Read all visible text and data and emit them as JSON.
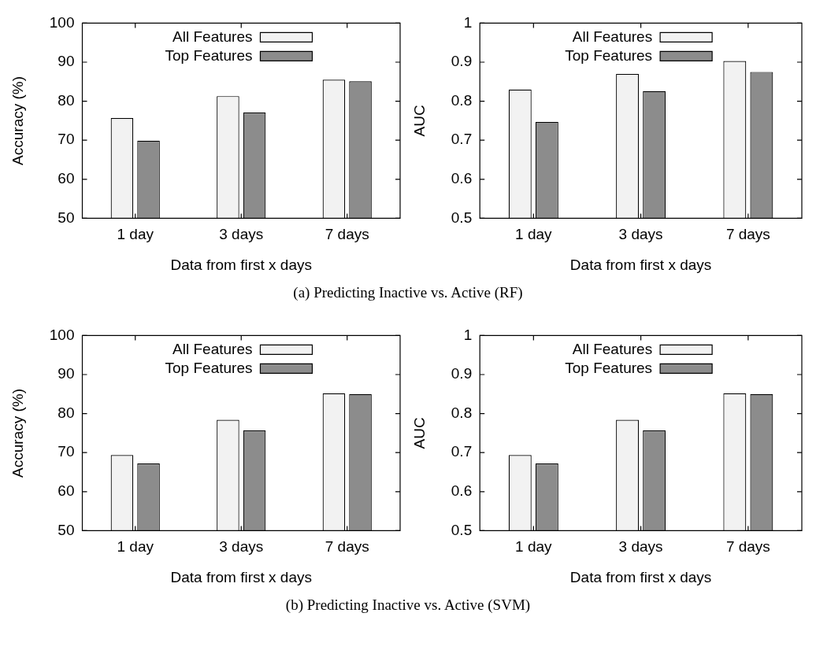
{
  "chart_data": [
    {
      "type": "bar",
      "ylabel": "Accuracy (%)",
      "xlabel": "Data from first x days",
      "categories": [
        "1 day",
        "3 days",
        "7 days"
      ],
      "series": [
        {
          "name": "All Features",
          "color": "#f2f2f2",
          "values": [
            75.7,
            81.3,
            85.5
          ]
        },
        {
          "name": "Top Features",
          "color": "#8c8c8c",
          "values": [
            69.9,
            77.1,
            85.1
          ]
        }
      ],
      "ylim": [
        50,
        100
      ],
      "yticks": [
        50,
        60,
        70,
        80,
        90,
        100
      ],
      "legend": "top",
      "grid": false
    },
    {
      "type": "bar",
      "ylabel": "AUC",
      "xlabel": "Data from first x days",
      "categories": [
        "1 day",
        "3 days",
        "7 days"
      ],
      "series": [
        {
          "name": "All Features",
          "color": "#f2f2f2",
          "values": [
            0.83,
            0.87,
            0.903
          ]
        },
        {
          "name": "Top Features",
          "color": "#8c8c8c",
          "values": [
            0.747,
            0.826,
            0.875
          ]
        }
      ],
      "ylim": [
        0.5,
        1
      ],
      "yticks": [
        0.5,
        0.6,
        0.7,
        0.8,
        0.9,
        1
      ],
      "legend": "top",
      "grid": false,
      "annotations": [
        "(a) Predicting Inactive vs. Active (RF)"
      ]
    },
    {
      "type": "bar",
      "ylabel": "Accuracy (%)",
      "xlabel": "Data from first x days",
      "categories": [
        "1 day",
        "3 days",
        "7 days"
      ],
      "series": [
        {
          "name": "All Features",
          "color": "#f2f2f2",
          "values": [
            69.4,
            78.4,
            85.2
          ]
        },
        {
          "name": "Top Features",
          "color": "#8c8c8c",
          "values": [
            67.2,
            75.7,
            85.0
          ]
        }
      ],
      "ylim": [
        50,
        100
      ],
      "yticks": [
        50,
        60,
        70,
        80,
        90,
        100
      ],
      "legend": "top",
      "grid": false
    },
    {
      "type": "bar",
      "ylabel": "AUC",
      "xlabel": "Data from first x days",
      "categories": [
        "1 day",
        "3 days",
        "7 days"
      ],
      "series": [
        {
          "name": "All Features",
          "color": "#f2f2f2",
          "values": [
            0.694,
            0.784,
            0.852
          ]
        },
        {
          "name": "Top Features",
          "color": "#8c8c8c",
          "values": [
            0.672,
            0.757,
            0.85
          ]
        }
      ],
      "ylim": [
        0.5,
        1
      ],
      "yticks": [
        0.5,
        0.6,
        0.7,
        0.8,
        0.9,
        1
      ],
      "legend": "top",
      "grid": false,
      "annotations": [
        "(b) Predicting Inactive vs. Active (SVM)"
      ]
    }
  ]
}
